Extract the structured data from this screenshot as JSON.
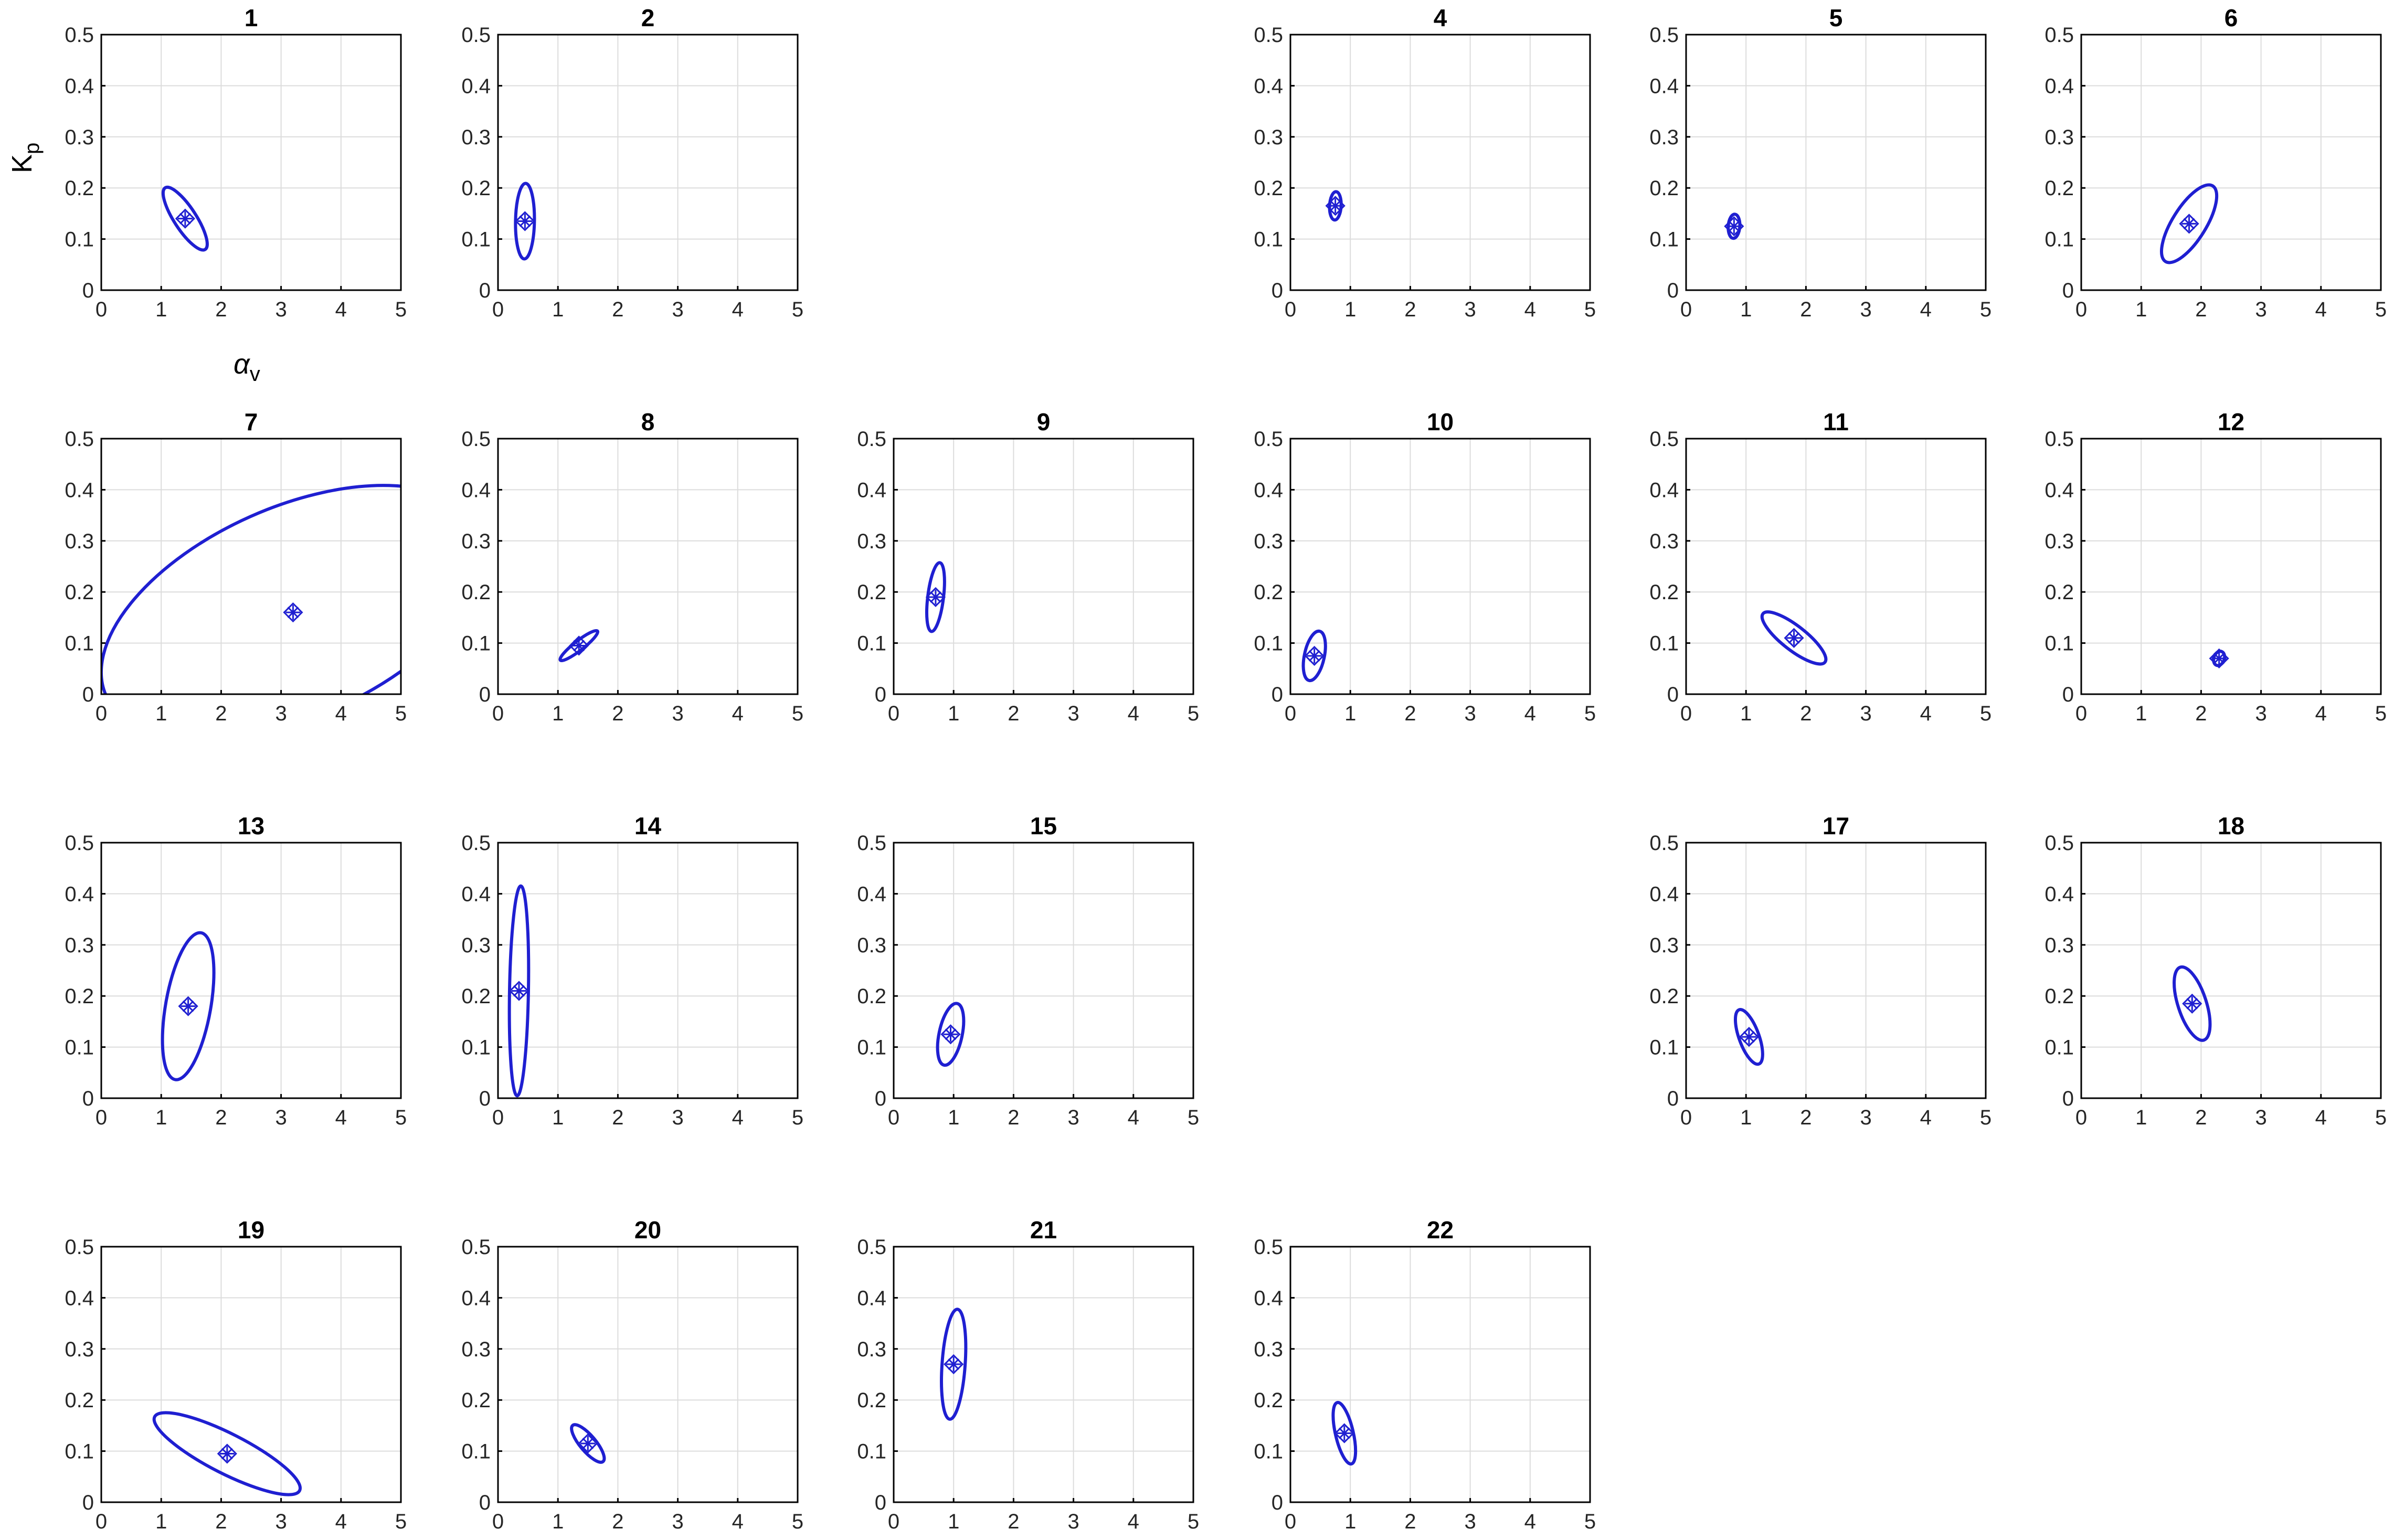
{
  "figure": {
    "ylabel": "K",
    "ylabel_sub": "p",
    "xlabel": "α",
    "xlabel_sub": "v"
  },
  "style": {
    "ellipse_color": "#1f1fd1",
    "axis_color": "#000000",
    "grid_color": "#dcdcdc",
    "tick_label_color": "#262626",
    "title_color": "#000000"
  },
  "chart_data": [
    {
      "type": "scatter",
      "title": "1",
      "xlim": [
        0,
        5
      ],
      "ylim": [
        0,
        0.5
      ],
      "xticks": [
        "0",
        "1",
        "2",
        "3",
        "4",
        "5"
      ],
      "yticks": [
        "0",
        "0.1",
        "0.2",
        "0.3",
        "0.4",
        "0.5"
      ],
      "grid": true,
      "ellipse": {
        "cx": 1.4,
        "cy": 0.14,
        "rx": 0.7,
        "ry": 0.21,
        "angle_deg": -57
      }
    },
    {
      "type": "scatter",
      "title": "2",
      "xlim": [
        0,
        5
      ],
      "ylim": [
        0,
        0.5
      ],
      "xticks": [
        "0",
        "1",
        "2",
        "3",
        "4",
        "5"
      ],
      "yticks": [
        "0",
        "0.1",
        "0.2",
        "0.3",
        "0.4",
        "0.5"
      ],
      "grid": true,
      "ellipse": {
        "cx": 0.45,
        "cy": 0.135,
        "rx": 0.72,
        "ry": 0.18,
        "angle_deg": 89
      }
    },
    null,
    {
      "type": "scatter",
      "title": "4",
      "xlim": [
        0,
        5
      ],
      "ylim": [
        0,
        0.5
      ],
      "xticks": [
        "0",
        "1",
        "2",
        "3",
        "4",
        "5"
      ],
      "yticks": [
        "0",
        "0.1",
        "0.2",
        "0.3",
        "0.4",
        "0.5"
      ],
      "grid": true,
      "ellipse": {
        "cx": 0.75,
        "cy": 0.165,
        "rx": 0.27,
        "ry": 0.11,
        "angle_deg": 87
      }
    },
    {
      "type": "scatter",
      "title": "5",
      "xlim": [
        0,
        5
      ],
      "ylim": [
        0,
        0.5
      ],
      "xticks": [
        "0",
        "1",
        "2",
        "3",
        "4",
        "5"
      ],
      "yticks": [
        "0",
        "0.1",
        "0.2",
        "0.3",
        "0.4",
        "0.5"
      ],
      "grid": true,
      "ellipse": {
        "cx": 0.8,
        "cy": 0.125,
        "rx": 0.23,
        "ry": 0.11,
        "angle_deg": 86
      }
    },
    {
      "type": "scatter",
      "title": "6",
      "xlim": [
        0,
        5
      ],
      "ylim": [
        0,
        0.5
      ],
      "xticks": [
        "0",
        "1",
        "2",
        "3",
        "4",
        "5"
      ],
      "yticks": [
        "0",
        "0.1",
        "0.2",
        "0.3",
        "0.4",
        "0.5"
      ],
      "grid": true,
      "ellipse": {
        "cx": 1.8,
        "cy": 0.13,
        "rx": 0.85,
        "ry": 0.32,
        "angle_deg": 58
      }
    },
    {
      "type": "scatter",
      "title": "7",
      "xlim": [
        0,
        5
      ],
      "ylim": [
        0,
        0.5
      ],
      "xticks": [
        "0",
        "1",
        "2",
        "3",
        "4",
        "5"
      ],
      "yticks": [
        "0",
        "0.1",
        "0.2",
        "0.3",
        "0.4",
        "0.5"
      ],
      "grid": true,
      "ellipse": {
        "cx": 3.2,
        "cy": 0.16,
        "rx": 3.9,
        "ry": 2.0,
        "angle_deg": 24
      }
    },
    {
      "type": "scatter",
      "title": "8",
      "xlim": [
        0,
        5
      ],
      "ylim": [
        0,
        0.5
      ],
      "xticks": [
        "0",
        "1",
        "2",
        "3",
        "4",
        "5"
      ],
      "yticks": [
        "0",
        "0.1",
        "0.2",
        "0.3",
        "0.4",
        "0.5"
      ],
      "grid": true,
      "ellipse": {
        "cx": 1.35,
        "cy": 0.095,
        "rx": 0.45,
        "ry": 0.09,
        "angle_deg": 38
      }
    },
    {
      "type": "scatter",
      "title": "9",
      "xlim": [
        0,
        5
      ],
      "ylim": [
        0,
        0.5
      ],
      "xticks": [
        "0",
        "1",
        "2",
        "3",
        "4",
        "5"
      ],
      "yticks": [
        "0",
        "0.1",
        "0.2",
        "0.3",
        "0.4",
        "0.5"
      ],
      "grid": true,
      "ellipse": {
        "cx": 0.7,
        "cy": 0.19,
        "rx": 0.66,
        "ry": 0.15,
        "angle_deg": 83
      }
    },
    {
      "type": "scatter",
      "title": "10",
      "xlim": [
        0,
        5
      ],
      "ylim": [
        0,
        0.5
      ],
      "xticks": [
        "0",
        "1",
        "2",
        "3",
        "4",
        "5"
      ],
      "yticks": [
        "0",
        "0.1",
        "0.2",
        "0.3",
        "0.4",
        "0.5"
      ],
      "grid": true,
      "ellipse": {
        "cx": 0.4,
        "cy": 0.075,
        "rx": 0.48,
        "ry": 0.19,
        "angle_deg": 78
      }
    },
    {
      "type": "scatter",
      "title": "11",
      "xlim": [
        0,
        5
      ],
      "ylim": [
        0,
        0.5
      ],
      "xticks": [
        "0",
        "1",
        "2",
        "3",
        "4",
        "5"
      ],
      "yticks": [
        "0",
        "0.1",
        "0.2",
        "0.3",
        "0.4",
        "0.5"
      ],
      "grid": true,
      "ellipse": {
        "cx": 1.8,
        "cy": 0.11,
        "rx": 0.75,
        "ry": 0.23,
        "angle_deg": -38
      }
    },
    {
      "type": "scatter",
      "title": "12",
      "xlim": [
        0,
        5
      ],
      "ylim": [
        0,
        0.5
      ],
      "xticks": [
        "0",
        "1",
        "2",
        "3",
        "4",
        "5"
      ],
      "yticks": [
        "0",
        "0.1",
        "0.2",
        "0.3",
        "0.4",
        "0.5"
      ],
      "grid": true,
      "ellipse": {
        "cx": 2.3,
        "cy": 0.07,
        "rx": 0.14,
        "ry": 0.1,
        "angle_deg": 70
      }
    },
    {
      "type": "scatter",
      "title": "13",
      "xlim": [
        0,
        5
      ],
      "ylim": [
        0,
        0.5
      ],
      "xticks": [
        "0",
        "1",
        "2",
        "3",
        "4",
        "5"
      ],
      "yticks": [
        "0",
        "0.1",
        "0.2",
        "0.3",
        "0.4",
        "0.5"
      ],
      "grid": true,
      "ellipse": {
        "cx": 1.45,
        "cy": 0.18,
        "rx": 1.42,
        "ry": 0.43,
        "angle_deg": 80
      }
    },
    {
      "type": "scatter",
      "title": "14",
      "xlim": [
        0,
        5
      ],
      "ylim": [
        0,
        0.5
      ],
      "xticks": [
        "0",
        "1",
        "2",
        "3",
        "4",
        "5"
      ],
      "yticks": [
        "0",
        "0.1",
        "0.2",
        "0.3",
        "0.4",
        "0.5"
      ],
      "grid": true,
      "ellipse": {
        "cx": 0.35,
        "cy": 0.21,
        "rx": 2.0,
        "ry": 0.18,
        "angle_deg": 89
      }
    },
    {
      "type": "scatter",
      "title": "15",
      "xlim": [
        0,
        5
      ],
      "ylim": [
        0,
        0.5
      ],
      "xticks": [
        "0",
        "1",
        "2",
        "3",
        "4",
        "5"
      ],
      "yticks": [
        "0",
        "0.1",
        "0.2",
        "0.3",
        "0.4",
        "0.5"
      ],
      "grid": true,
      "ellipse": {
        "cx": 0.95,
        "cy": 0.125,
        "rx": 0.6,
        "ry": 0.22,
        "angle_deg": 78
      }
    },
    null,
    {
      "type": "scatter",
      "title": "17",
      "xlim": [
        0,
        5
      ],
      "ylim": [
        0,
        0.5
      ],
      "xticks": [
        "0",
        "1",
        "2",
        "3",
        "4",
        "5"
      ],
      "yticks": [
        "0",
        "0.1",
        "0.2",
        "0.3",
        "0.4",
        "0.5"
      ],
      "grid": true,
      "ellipse": {
        "cx": 1.05,
        "cy": 0.12,
        "rx": 0.55,
        "ry": 0.19,
        "angle_deg": -70
      }
    },
    {
      "type": "scatter",
      "title": "18",
      "xlim": [
        0,
        5
      ],
      "ylim": [
        0,
        0.5
      ],
      "xticks": [
        "0",
        "1",
        "2",
        "3",
        "4",
        "5"
      ],
      "yticks": [
        "0",
        "0.1",
        "0.2",
        "0.3",
        "0.4",
        "0.5"
      ],
      "grid": true,
      "ellipse": {
        "cx": 1.85,
        "cy": 0.185,
        "rx": 0.73,
        "ry": 0.27,
        "angle_deg": -72
      }
    },
    {
      "type": "scatter",
      "title": "19",
      "xlim": [
        0,
        5
      ],
      "ylim": [
        0,
        0.5
      ],
      "xticks": [
        "0",
        "1",
        "2",
        "3",
        "4",
        "5"
      ],
      "yticks": [
        "0",
        "0.1",
        "0.2",
        "0.3",
        "0.4",
        "0.5"
      ],
      "grid": true,
      "ellipse": {
        "cx": 2.1,
        "cy": 0.095,
        "rx": 1.55,
        "ry": 0.38,
        "angle_deg": -27
      }
    },
    {
      "type": "scatter",
      "title": "20",
      "xlim": [
        0,
        5
      ],
      "ylim": [
        0,
        0.5
      ],
      "xticks": [
        "0",
        "1",
        "2",
        "3",
        "4",
        "5"
      ],
      "yticks": [
        "0",
        "0.1",
        "0.2",
        "0.3",
        "0.4",
        "0.5"
      ],
      "grid": true,
      "ellipse": {
        "cx": 1.5,
        "cy": 0.115,
        "rx": 0.45,
        "ry": 0.15,
        "angle_deg": -50
      }
    },
    {
      "type": "scatter",
      "title": "21",
      "xlim": [
        0,
        5
      ],
      "ylim": [
        0,
        0.5
      ],
      "xticks": [
        "0",
        "1",
        "2",
        "3",
        "4",
        "5"
      ],
      "yticks": [
        "0",
        "0.1",
        "0.2",
        "0.3",
        "0.4",
        "0.5"
      ],
      "grid": true,
      "ellipse": {
        "cx": 1.0,
        "cy": 0.27,
        "rx": 1.05,
        "ry": 0.22,
        "angle_deg": 86
      }
    },
    {
      "type": "scatter",
      "title": "22",
      "xlim": [
        0,
        5
      ],
      "ylim": [
        0,
        0.5
      ],
      "xticks": [
        "0",
        "1",
        "2",
        "3",
        "4",
        "5"
      ],
      "yticks": [
        "0",
        "0.1",
        "0.2",
        "0.3",
        "0.4",
        "0.5"
      ],
      "grid": true,
      "ellipse": {
        "cx": 0.9,
        "cy": 0.135,
        "rx": 0.6,
        "ry": 0.17,
        "angle_deg": -77
      }
    },
    null,
    null
  ]
}
